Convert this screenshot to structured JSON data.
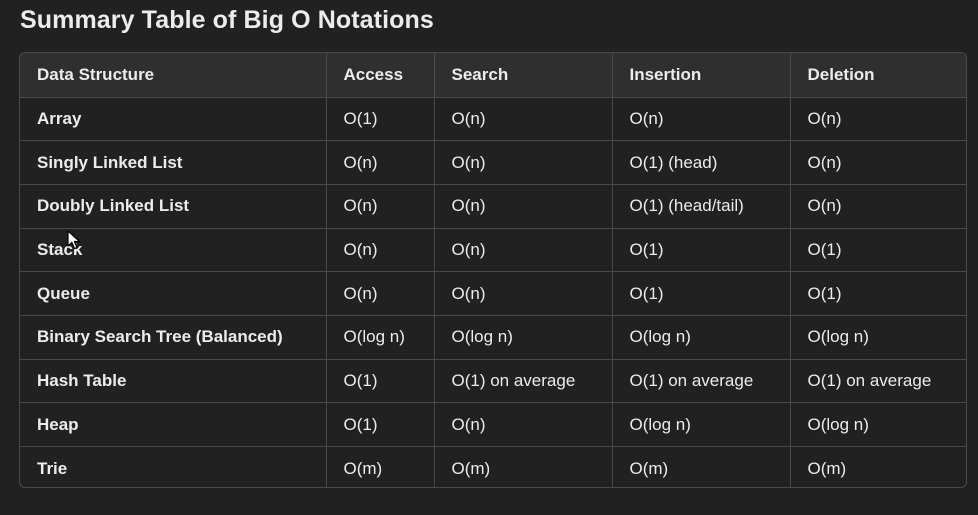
{
  "title": "Summary Table of Big O Notations",
  "table": {
    "headers": [
      "Data Structure",
      "Access",
      "Search",
      "Insertion",
      "Deletion"
    ],
    "rows": [
      [
        "Array",
        "O(1)",
        "O(n)",
        "O(n)",
        "O(n)"
      ],
      [
        "Singly Linked List",
        "O(n)",
        "O(n)",
        "O(1) (head)",
        "O(n)"
      ],
      [
        "Doubly Linked List",
        "O(n)",
        "O(n)",
        "O(1) (head/tail)",
        "O(n)"
      ],
      [
        "Stack",
        "O(n)",
        "O(n)",
        "O(1)",
        "O(1)"
      ],
      [
        "Queue",
        "O(n)",
        "O(n)",
        "O(1)",
        "O(1)"
      ],
      [
        "Binary Search Tree (Balanced)",
        "O(log n)",
        "O(log n)",
        "O(log n)",
        "O(log n)"
      ],
      [
        "Hash Table",
        "O(1)",
        "O(1) on average",
        "O(1) on average",
        "O(1) on average"
      ],
      [
        "Heap",
        "O(1)",
        "O(n)",
        "O(log n)",
        "O(log n)"
      ],
      [
        "Trie",
        "O(m)",
        "O(m)",
        "O(m)",
        "O(m)"
      ]
    ]
  },
  "colors": {
    "background": "#212121",
    "header_background": "#2f2f2f",
    "border": "#4a4a4a",
    "text": "#ececec"
  },
  "cursor_icon": "mouse-pointer-icon"
}
